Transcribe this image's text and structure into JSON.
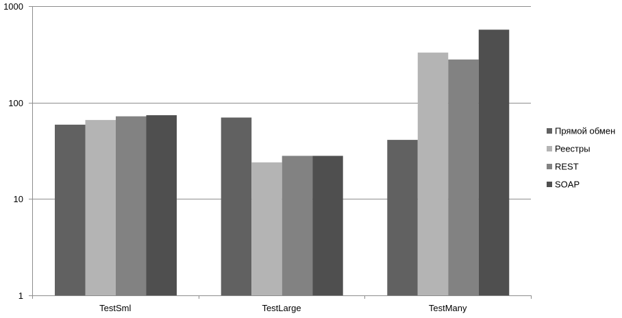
{
  "chart_data": {
    "type": "bar",
    "title": "",
    "xlabel": "",
    "ylabel": "",
    "yscale": "log",
    "ylim": [
      1,
      1000
    ],
    "yticks": [
      {
        "value": 1,
        "label": "1"
      },
      {
        "value": 10,
        "label": "10"
      },
      {
        "value": 100,
        "label": "100"
      },
      {
        "value": 1000,
        "label": "1000"
      }
    ],
    "grid": true,
    "legend_position": "right",
    "categories": [
      "TestSml",
      "TestLarge",
      "TestMany"
    ],
    "series": [
      {
        "name": "Прямой обмен",
        "color": "#616161",
        "values": [
          59,
          70,
          41
        ]
      },
      {
        "name": "Реестры",
        "color": "#b4b4b4",
        "values": [
          66,
          24,
          330
        ]
      },
      {
        "name": "REST",
        "color": "#828282",
        "values": [
          72,
          28,
          280
        ]
      },
      {
        "name": "SOAP",
        "color": "#4f4f4f",
        "values": [
          74,
          28,
          570
        ]
      }
    ]
  }
}
